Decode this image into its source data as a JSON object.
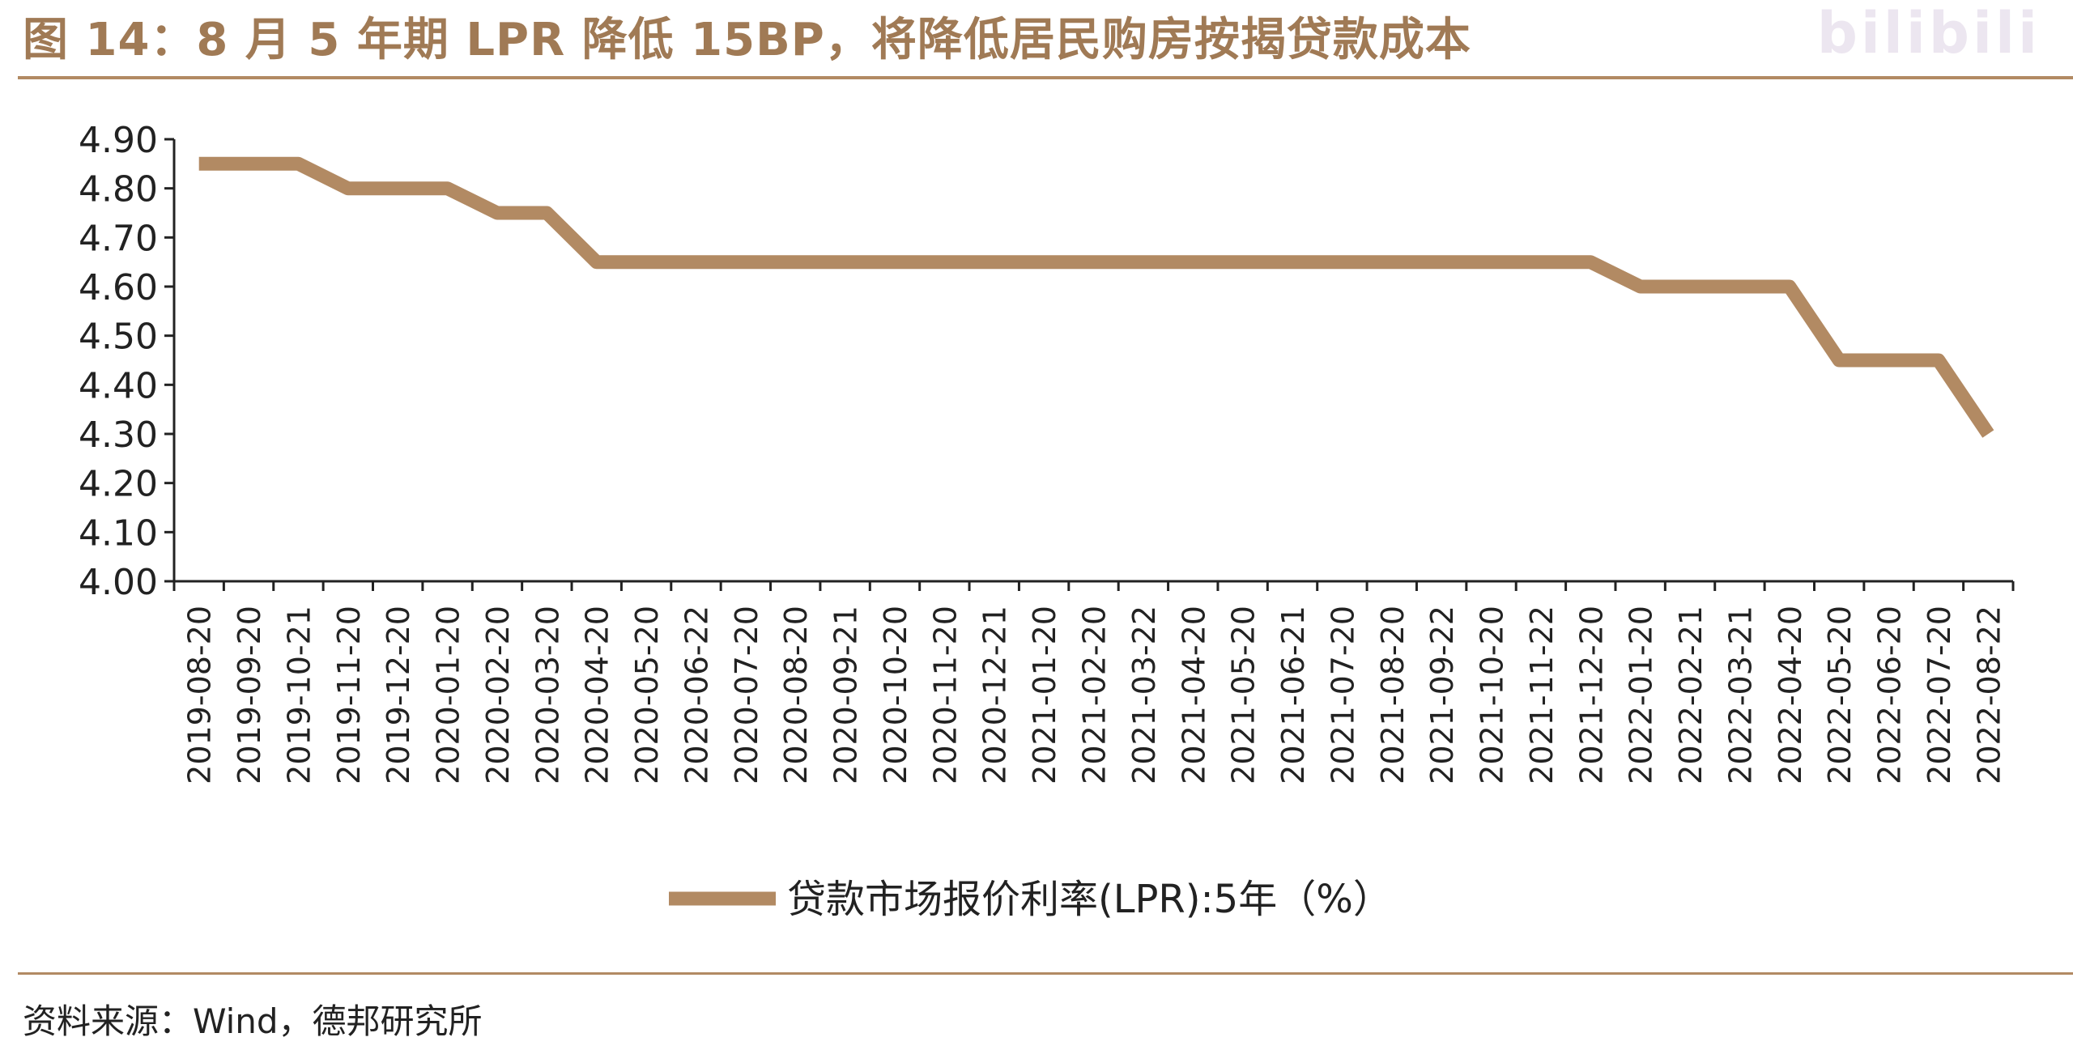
{
  "header": {
    "title": "图 14：8 月 5 年期 LPR 降低 15BP，将降低居民购房按揭贷款成本"
  },
  "footer": {
    "source": "资料来源：Wind，德邦研究所"
  },
  "watermark": "bilibili",
  "colors": {
    "line": "#b28a63",
    "rule": "#b28a63",
    "axis": "#222222"
  },
  "chart_data": {
    "type": "line",
    "title": "",
    "xlabel": "",
    "ylabel": "",
    "ylim": [
      4.0,
      4.9
    ],
    "y_ticks": [
      "4.00",
      "4.10",
      "4.20",
      "4.30",
      "4.40",
      "4.50",
      "4.60",
      "4.70",
      "4.80",
      "4.90"
    ],
    "grid": false,
    "legend_position": "bottom-center",
    "categories": [
      "2019-08-20",
      "2019-09-20",
      "2019-10-21",
      "2019-11-20",
      "2019-12-20",
      "2020-01-20",
      "2020-02-20",
      "2020-03-20",
      "2020-04-20",
      "2020-05-20",
      "2020-06-22",
      "2020-07-20",
      "2020-08-20",
      "2020-09-21",
      "2020-10-20",
      "2020-11-20",
      "2020-12-21",
      "2021-01-20",
      "2021-02-20",
      "2021-03-22",
      "2021-04-20",
      "2021-05-20",
      "2021-06-21",
      "2021-07-20",
      "2021-08-20",
      "2021-09-22",
      "2021-10-20",
      "2021-11-22",
      "2021-12-20",
      "2022-01-20",
      "2022-02-21",
      "2022-03-21",
      "2022-04-20",
      "2022-05-20",
      "2022-06-20",
      "2022-07-20",
      "2022-08-22"
    ],
    "series": [
      {
        "name": "贷款市场报价利率(LPR):5年（%）",
        "color": "#b28a63",
        "values": [
          4.85,
          4.85,
          4.85,
          4.8,
          4.8,
          4.8,
          4.75,
          4.75,
          4.65,
          4.65,
          4.65,
          4.65,
          4.65,
          4.65,
          4.65,
          4.65,
          4.65,
          4.65,
          4.65,
          4.65,
          4.65,
          4.65,
          4.65,
          4.65,
          4.65,
          4.65,
          4.65,
          4.65,
          4.65,
          4.6,
          4.6,
          4.6,
          4.6,
          4.45,
          4.45,
          4.45,
          4.3
        ]
      }
    ]
  }
}
